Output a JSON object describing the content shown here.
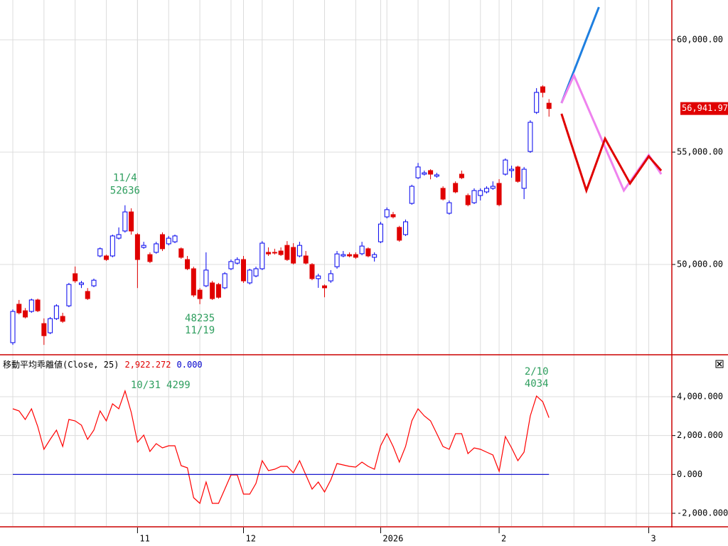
{
  "chart_data": [
    {
      "type": "candlestick",
      "categories": [
        null,
        null,
        null,
        null,
        null,
        null,
        null,
        null,
        null,
        null,
        null,
        null,
        null,
        null,
        null,
        null,
        null,
        null,
        null,
        null,
        "11",
        null,
        null,
        null,
        null,
        null,
        null,
        null,
        null,
        null,
        null,
        null,
        null,
        null,
        null,
        null,
        null,
        "12",
        null,
        null,
        null,
        null,
        null,
        null,
        null,
        null,
        null,
        null,
        null,
        null,
        null,
        null,
        null,
        null,
        null,
        null,
        null,
        null,
        null,
        "2026",
        null,
        null,
        null,
        null,
        null,
        null,
        null,
        null,
        null,
        null,
        null,
        null,
        null,
        null,
        null,
        null,
        null,
        null,
        "2",
        null,
        null,
        null,
        null,
        null,
        null,
        null,
        null,
        null,
        null,
        null,
        null,
        null,
        null,
        null,
        null,
        null,
        null,
        null,
        null,
        null,
        null,
        null,
        "3",
        null,
        null
      ],
      "open": [
        46520,
        48230,
        47940,
        47910,
        48420,
        47370,
        46960,
        47590,
        47690,
        48160,
        49590,
        49110,
        48800,
        49050,
        50380,
        50380,
        50380,
        51170,
        51490,
        52340,
        51330,
        50760,
        50440,
        50540,
        51330,
        50920,
        51010,
        50700,
        50220,
        49810,
        48860,
        49050,
        49180,
        49110,
        48960,
        49810,
        50060,
        50220,
        49180,
        49490,
        49810,
        50540,
        50540,
        50600,
        50850,
        50760,
        50380,
        50380,
        50000,
        49370,
        49050,
        49270,
        49900,
        50380,
        50440,
        50440,
        50480,
        50700,
        50320,
        51010,
        52120,
        52220,
        51650,
        51330,
        52720,
        53860,
        54020,
        54180,
        53930,
        53390,
        52280,
        53610,
        54020,
        53070,
        52750,
        53070,
        53230,
        53390,
        53610,
        54020,
        54180,
        54340,
        53390,
        55030,
        56770,
        57910,
        57180,
        null,
        null,
        null,
        null,
        null,
        null,
        null,
        null,
        null,
        null,
        null,
        null,
        null,
        null,
        null,
        null,
        null,
        null
      ],
      "high": [
        48000,
        48420,
        48060,
        48480,
        48480,
        47600,
        47660,
        48230,
        47850,
        49180,
        49910,
        49270,
        48950,
        49370,
        50760,
        50440,
        51330,
        51650,
        52636,
        52500,
        51400,
        51010,
        50540,
        51010,
        51430,
        51270,
        51330,
        50760,
        50380,
        49900,
        48950,
        50540,
        49270,
        49180,
        49660,
        50220,
        50320,
        50380,
        49810,
        49900,
        51040,
        50760,
        50700,
        50760,
        51040,
        50950,
        51010,
        50600,
        50060,
        49590,
        49110,
        49750,
        50600,
        50600,
        50540,
        50540,
        51010,
        50760,
        50540,
        51900,
        52540,
        52340,
        51720,
        52000,
        53550,
        54520,
        54180,
        54240,
        54080,
        53480,
        52850,
        53700,
        54180,
        53160,
        53390,
        53390,
        53480,
        53700,
        53800,
        54720,
        54400,
        54400,
        54340,
        56420,
        57850,
        57980,
        57360,
        null,
        null,
        null,
        null,
        null,
        null,
        null,
        null,
        null,
        null,
        null,
        null,
        null,
        null,
        null,
        null,
        null,
        null
      ],
      "low": [
        46420,
        47780,
        47600,
        47850,
        47880,
        46420,
        46900,
        47530,
        47400,
        48100,
        49180,
        48950,
        48420,
        48990,
        50320,
        50160,
        50320,
        51110,
        51420,
        51330,
        48950,
        50700,
        50060,
        50480,
        50600,
        50850,
        50950,
        50250,
        49750,
        48550,
        48235,
        48990,
        48420,
        48480,
        48900,
        49750,
        50000,
        49180,
        49110,
        49430,
        49750,
        50380,
        50440,
        50380,
        50160,
        50000,
        50320,
        50000,
        49300,
        48960,
        48540,
        49180,
        49810,
        50320,
        50320,
        50250,
        50410,
        50320,
        50130,
        50950,
        52050,
        52050,
        51010,
        51270,
        52660,
        53800,
        53960,
        53790,
        53860,
        52850,
        52220,
        53170,
        53800,
        52590,
        52690,
        52850,
        53160,
        53320,
        52590,
        53960,
        53860,
        53640,
        52910,
        54970,
        56700,
        57440,
        56580,
        null,
        null,
        null,
        null,
        null,
        null,
        null,
        null,
        null,
        null,
        null,
        null,
        null,
        null,
        null,
        null,
        null,
        null
      ],
      "close": [
        47910,
        47850,
        47660,
        48420,
        47940,
        46830,
        47590,
        48160,
        47470,
        49110,
        49270,
        49180,
        48480,
        49300,
        50700,
        50220,
        51270,
        51330,
        52340,
        51490,
        50220,
        50850,
        50130,
        50920,
        50700,
        51170,
        51270,
        50320,
        49810,
        48640,
        48480,
        49750,
        48480,
        48540,
        49590,
        50130,
        50220,
        49270,
        49750,
        49810,
        50950,
        50470,
        50510,
        50440,
        50220,
        50060,
        50850,
        50060,
        49370,
        49490,
        48960,
        49590,
        50470,
        50440,
        50380,
        50320,
        50820,
        50380,
        50440,
        51800,
        52440,
        52120,
        51080,
        51900,
        53480,
        54340,
        54080,
        54020,
        53990,
        52910,
        52750,
        53230,
        53860,
        52660,
        53290,
        53290,
        53390,
        53480,
        52660,
        54650,
        54240,
        53700,
        54240,
        56330,
        57660,
        57660,
        56941.97,
        null,
        null,
        null,
        null,
        null,
        null,
        null,
        null,
        null,
        null,
        null,
        null,
        null,
        null,
        null,
        null,
        null,
        null
      ],
      "up_color": "#0000ee",
      "down_color": "#e00000",
      "lines": [
        {
          "color": "#1e7fe0",
          "values": [
            null,
            null,
            null,
            null,
            null,
            null,
            null,
            null,
            null,
            null,
            null,
            null,
            null,
            null,
            null,
            null,
            null,
            null,
            null,
            null,
            null,
            null,
            null,
            null,
            null,
            null,
            null,
            null,
            null,
            null,
            null,
            null,
            null,
            null,
            null,
            null,
            null,
            null,
            null,
            null,
            null,
            null,
            null,
            null,
            null,
            null,
            null,
            null,
            null,
            null,
            null,
            null,
            null,
            null,
            null,
            null,
            null,
            null,
            null,
            null,
            null,
            null,
            null,
            null,
            null,
            null,
            null,
            null,
            null,
            null,
            null,
            null,
            null,
            null,
            null,
            null,
            null,
            null,
            null,
            null,
            null,
            null,
            null,
            null,
            null,
            null,
            null,
            null,
            57184,
            57896,
            58608,
            59320,
            60033,
            60745,
            61457,
            null,
            null,
            null,
            null,
            null,
            null,
            null,
            null,
            null,
            null
          ]
        },
        {
          "color": "#ee82ee",
          "values": [
            null,
            null,
            null,
            null,
            null,
            null,
            null,
            null,
            null,
            null,
            null,
            null,
            null,
            null,
            null,
            null,
            null,
            null,
            null,
            null,
            null,
            null,
            null,
            null,
            null,
            null,
            null,
            null,
            null,
            null,
            null,
            null,
            null,
            null,
            null,
            null,
            null,
            null,
            null,
            null,
            null,
            null,
            null,
            null,
            null,
            null,
            null,
            null,
            null,
            null,
            null,
            null,
            null,
            null,
            null,
            null,
            null,
            null,
            null,
            null,
            null,
            null,
            null,
            null,
            null,
            null,
            null,
            null,
            null,
            null,
            null,
            null,
            null,
            null,
            null,
            null,
            null,
            null,
            null,
            null,
            null,
            null,
            null,
            null,
            null,
            null,
            null,
            null,
            57184,
            57801,
            58418,
            57777,
            57136,
            56495,
            55854,
            55213,
            54573,
            53932,
            53291,
            53687,
            54082,
            54478,
            54873,
            54446,
            54019
          ]
        },
        {
          "color": "#e00000",
          "values": [
            null,
            null,
            null,
            null,
            null,
            null,
            null,
            null,
            null,
            null,
            null,
            null,
            null,
            null,
            null,
            null,
            null,
            null,
            null,
            null,
            null,
            null,
            null,
            null,
            null,
            null,
            null,
            null,
            null,
            null,
            null,
            null,
            null,
            null,
            null,
            null,
            null,
            null,
            null,
            null,
            null,
            null,
            null,
            null,
            null,
            null,
            null,
            null,
            null,
            null,
            null,
            null,
            null,
            null,
            null,
            null,
            null,
            null,
            null,
            null,
            null,
            null,
            null,
            null,
            null,
            null,
            null,
            null,
            null,
            null,
            null,
            null,
            null,
            null,
            null,
            null,
            null,
            null,
            null,
            null,
            null,
            null,
            null,
            null,
            null,
            null,
            null,
            null,
            56709,
            55855,
            55000,
            54146,
            53291,
            54061,
            54831,
            55601,
            55103,
            54604,
            54106,
            53607,
            54008,
            54409,
            54810,
            54494,
            54177
          ]
        }
      ],
      "annotations": [
        {
          "kind": "high",
          "label": "11/4",
          "value": 52636
        },
        {
          "kind": "low",
          "label": "11/19",
          "value": 48235
        }
      ],
      "last_price": {
        "value": 56941.97,
        "label": "56,941.97",
        "color": "#e00000"
      },
      "ylim": [
        46013,
        61773
      ],
      "yticks": [
        {
          "value": 50000,
          "label": "50,000.00"
        },
        {
          "value": 55000,
          "label": "55,000.00"
        },
        {
          "value": 60000,
          "label": "60,000.00"
        }
      ],
      "grid": true
    },
    {
      "type": "line",
      "title": "移動平均乖離値(Close, 25)",
      "readouts": [
        {
          "value": 2922.272,
          "label": "2,922.272",
          "color": "#e00000"
        },
        {
          "value": 0,
          "label": "0.000",
          "color": "#0000cc"
        }
      ],
      "series": [
        {
          "color": "#ff0000",
          "values": [
            3378,
            3268,
            2829,
            3378,
            2463,
            1292,
            1805,
            2280,
            1439,
            2829,
            2756,
            2536,
            1805,
            2280,
            3268,
            2756,
            3634,
            3378,
            4299,
            3195,
            1658,
            2024,
            1183,
            1585,
            1366,
            1475,
            1475,
            451,
            342,
            -1196,
            -1489,
            -391,
            -1489,
            -1489,
            -757,
            -25,
            -25,
            -1013,
            -1013,
            -465,
            707,
            195,
            268,
            414,
            414,
            85,
            707,
            -25,
            -757,
            -391,
            -903,
            -281,
            561,
            487,
            414,
            378,
            634,
            414,
            268,
            1475,
            2097,
            1439,
            634,
            1439,
            2756,
            3378,
            3012,
            2756,
            2097,
            1439,
            1292,
            2097,
            2097,
            1073,
            1366,
            1292,
            1146,
            1000,
            158,
            1951,
            1366,
            707,
            1146,
            3012,
            4034,
            3744,
            2922.272
          ]
        },
        {
          "color": "#0000cc",
          "values": [
            0,
            0,
            0,
            0,
            0,
            0,
            0,
            0,
            0,
            0,
            0,
            0,
            0,
            0,
            0,
            0,
            0,
            0,
            0,
            0,
            0,
            0,
            0,
            0,
            0,
            0,
            0,
            0,
            0,
            0,
            0,
            0,
            0,
            0,
            0,
            0,
            0,
            0,
            0,
            0,
            0,
            0,
            0,
            0,
            0,
            0,
            0,
            0,
            0,
            0,
            0,
            0,
            0,
            0,
            0,
            0,
            0,
            0,
            0,
            0,
            0,
            0,
            0,
            0,
            0,
            0,
            0,
            0,
            0,
            0,
            0,
            0,
            0,
            0,
            0,
            0,
            0,
            0,
            0,
            0,
            0,
            0,
            0,
            0,
            0,
            0,
            0
          ]
        }
      ],
      "annotations": [
        {
          "label": "10/31",
          "value": 4299,
          "stacked": false
        },
        {
          "label": "2/10",
          "value": 4034,
          "stacked": true
        }
      ],
      "ylim": [
        -2659,
        6122
      ],
      "yticks": [
        {
          "value": -2000,
          "label": "-2,000.000"
        },
        {
          "value": 0,
          "label": "0.000"
        },
        {
          "value": 2000,
          "label": "2,000.000"
        },
        {
          "value": 4000,
          "label": "4,000.000"
        }
      ],
      "grid": true
    }
  ]
}
